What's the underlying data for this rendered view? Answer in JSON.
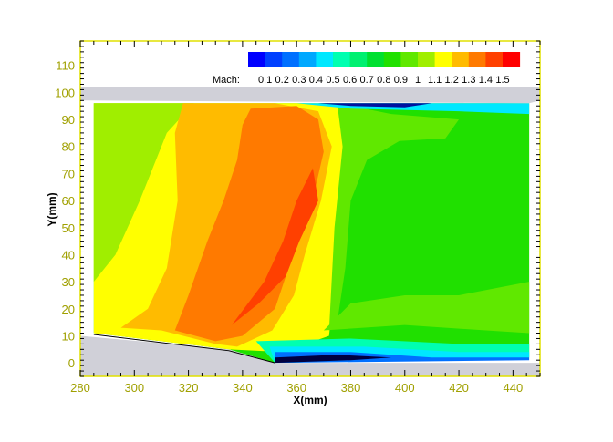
{
  "chart_data": {
    "type": "heatmap",
    "subtype": "filled-contour",
    "xlabel": "X(mm)",
    "ylabel": "Y(mm)",
    "xlim": [
      280,
      450
    ],
    "ylim": [
      -5,
      119
    ],
    "xticks": [
      280,
      300,
      320,
      340,
      360,
      380,
      400,
      420,
      440
    ],
    "yticks": [
      0,
      10,
      20,
      30,
      40,
      50,
      60,
      70,
      80,
      90,
      100,
      110
    ],
    "legend": {
      "title": "Mach:",
      "position": "top-right",
      "labels": [
        "0.1",
        "0.2",
        "0.3",
        "0.4",
        "0.5",
        "0.6",
        "0.7",
        "0.8",
        "0.9",
        "1",
        "1.1",
        "1.2",
        "1.3",
        "1.4",
        "1.5"
      ],
      "colors": [
        "#0000ff",
        "#0040ff",
        "#0070ff",
        "#00a8ff",
        "#00e8ff",
        "#00ffb0",
        "#00f070",
        "#00e030",
        "#20e000",
        "#60e800",
        "#a0ee00",
        "#ffff00",
        "#ffbb00",
        "#ff7a00",
        "#ff4000",
        "#ff0000"
      ]
    },
    "grid": false,
    "wall_color": "#d0d0d8",
    "axis_color": "#e0e000",
    "tick_label_color": "#a0a000"
  }
}
